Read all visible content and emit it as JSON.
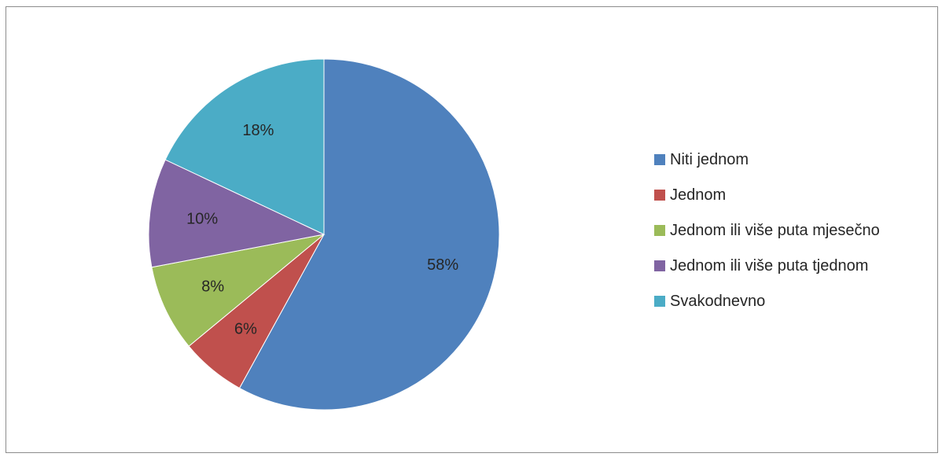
{
  "chart_data": {
    "type": "pie",
    "title": "",
    "legend_position": "right",
    "slices": [
      {
        "label": "Niti jednom",
        "value": 58,
        "display": "58%",
        "color": "#4F81BD"
      },
      {
        "label": "Jednom",
        "value": 6,
        "display": "6%",
        "color": "#C0504D"
      },
      {
        "label": "Jednom ili više puta mjesečno",
        "value": 8,
        "display": "8%",
        "color": "#9BBB59"
      },
      {
        "label": "Jednom ili više puta tjednom",
        "value": 10,
        "display": "10%",
        "color": "#8064A2"
      },
      {
        "label": "Svakodnevno",
        "value": 18,
        "display": "18%",
        "color": "#4BACC6"
      }
    ]
  }
}
